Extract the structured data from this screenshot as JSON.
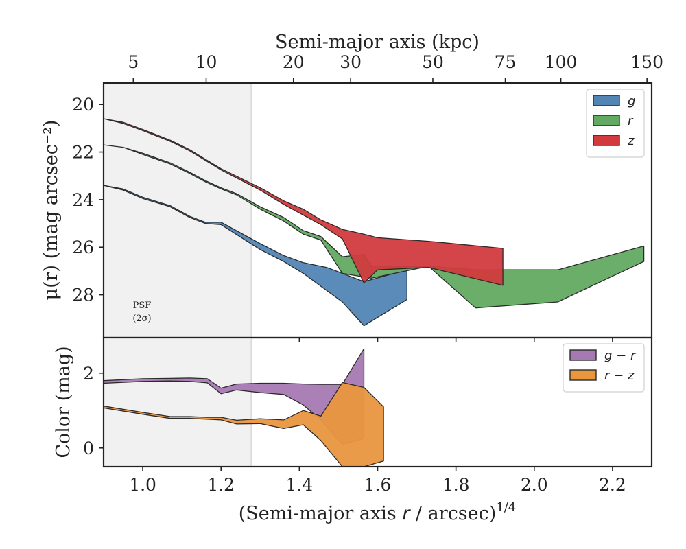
{
  "figure": {
    "top_axis_label": "Semi-major axis (kpc)",
    "bottom_axis_label_main": "(Semi-major axis ",
    "bottom_axis_label_var": "r",
    "bottom_axis_label_unit": " / arcsec)",
    "bottom_axis_label_power": "1/4",
    "psf_label_line1": "PSF",
    "psf_label_line2": "(2σ)"
  },
  "chart_data": [
    {
      "type": "area",
      "panel": "top",
      "ylabel": "μ(r) (mag arcsec⁻²)",
      "xlim": [
        0.9,
        2.3
      ],
      "ylim": [
        29.8,
        19.1
      ],
      "y_inverted": true,
      "x_ticks": [
        1.0,
        1.2,
        1.4,
        1.6,
        1.8,
        2.0,
        2.2
      ],
      "x_tick_labels": [
        "1.0",
        "1.2",
        "1.4",
        "1.6",
        "1.8",
        "2.0",
        "2.2"
      ],
      "y_ticks": [
        20,
        22,
        24,
        26,
        28
      ],
      "y_tick_labels": [
        "20",
        "22",
        "24",
        "26",
        "28"
      ],
      "top_axis_ticks_kpc": [
        5,
        10,
        20,
        30,
        50,
        75,
        100,
        150
      ],
      "top_axis_tick_labels": [
        "5",
        "10",
        "20",
        "30",
        "50",
        "75",
        "100",
        "150"
      ],
      "top_axis_tick_positions_x": [
        0.976,
        1.162,
        1.385,
        1.531,
        1.741,
        1.926,
        2.068,
        2.288
      ],
      "psf_shaded_xmax": 1.277,
      "legend": "top-right",
      "series": [
        {
          "name": "g",
          "color": "#5285b4",
          "upper": [
            [
              0.9,
              23.4
            ],
            [
              0.95,
              23.6
            ],
            [
              1.0,
              23.95
            ],
            [
              1.07,
              24.3
            ],
            [
              1.12,
              24.75
            ],
            [
              1.16,
              25.0
            ],
            [
              1.2,
              25.05
            ],
            [
              1.3,
              26.1
            ],
            [
              1.36,
              26.6
            ],
            [
              1.41,
              27.1
            ],
            [
              1.51,
              28.3
            ],
            [
              1.565,
              29.3
            ],
            [
              1.675,
              28.2
            ],
            [
              1.675,
              26.95
            ]
          ],
          "lower": [
            [
              0.9,
              23.4
            ],
            [
              0.95,
              23.55
            ],
            [
              1.0,
              23.9
            ],
            [
              1.07,
              24.25
            ],
            [
              1.12,
              24.7
            ],
            [
              1.16,
              24.95
            ],
            [
              1.2,
              24.95
            ],
            [
              1.3,
              25.85
            ],
            [
              1.36,
              26.35
            ],
            [
              1.41,
              26.65
            ],
            [
              1.47,
              26.85
            ],
            [
              1.51,
              27.1
            ],
            [
              1.565,
              27.45
            ],
            [
              1.675,
              26.95
            ]
          ]
        },
        {
          "name": "r",
          "color": "#62aa62",
          "upper": [
            [
              0.9,
              21.7
            ],
            [
              0.95,
              21.8
            ],
            [
              1.0,
              22.1
            ],
            [
              1.07,
              22.5
            ],
            [
              1.12,
              22.9
            ],
            [
              1.16,
              23.25
            ],
            [
              1.2,
              23.55
            ],
            [
              1.24,
              23.8
            ],
            [
              1.3,
              24.4
            ],
            [
              1.36,
              24.9
            ],
            [
              1.41,
              25.45
            ],
            [
              1.455,
              25.7
            ],
            [
              1.51,
              27.1
            ],
            [
              1.565,
              27.25
            ],
            [
              1.585,
              27.3
            ],
            [
              1.73,
              26.8
            ],
            [
              1.85,
              28.55
            ],
            [
              2.06,
              28.3
            ],
            [
              2.28,
              26.6
            ]
          ],
          "lower": [
            [
              0.9,
              21.7
            ],
            [
              0.95,
              21.8
            ],
            [
              1.0,
              22.05
            ],
            [
              1.07,
              22.45
            ],
            [
              1.12,
              22.85
            ],
            [
              1.16,
              23.2
            ],
            [
              1.2,
              23.5
            ],
            [
              1.24,
              23.75
            ],
            [
              1.3,
              24.3
            ],
            [
              1.36,
              24.75
            ],
            [
              1.41,
              25.3
            ],
            [
              1.455,
              25.55
            ],
            [
              1.51,
              26.4
            ],
            [
              1.565,
              26.3
            ],
            [
              1.585,
              26.8
            ],
            [
              1.73,
              26.8
            ],
            [
              1.85,
              26.95
            ],
            [
              2.06,
              26.95
            ],
            [
              2.28,
              25.95
            ]
          ]
        },
        {
          "name": "z",
          "color": "#d13b3e",
          "upper": [
            [
              0.9,
              20.6
            ],
            [
              0.95,
              20.8
            ],
            [
              1.0,
              21.1
            ],
            [
              1.07,
              21.55
            ],
            [
              1.12,
              21.95
            ],
            [
              1.16,
              22.35
            ],
            [
              1.2,
              22.75
            ],
            [
              1.3,
              23.6
            ],
            [
              1.36,
              24.2
            ],
            [
              1.41,
              24.65
            ],
            [
              1.455,
              25.05
            ],
            [
              1.51,
              25.65
            ],
            [
              1.565,
              27.5
            ],
            [
              1.6,
              26.95
            ],
            [
              1.73,
              26.85
            ],
            [
              1.92,
              27.6
            ]
          ],
          "lower": [
            [
              0.9,
              20.6
            ],
            [
              0.95,
              20.75
            ],
            [
              1.0,
              21.05
            ],
            [
              1.07,
              21.5
            ],
            [
              1.12,
              21.9
            ],
            [
              1.16,
              22.3
            ],
            [
              1.2,
              22.7
            ],
            [
              1.3,
              23.5
            ],
            [
              1.36,
              24.05
            ],
            [
              1.41,
              24.4
            ],
            [
              1.455,
              24.85
            ],
            [
              1.51,
              25.25
            ],
            [
              1.565,
              25.45
            ],
            [
              1.6,
              25.6
            ],
            [
              1.73,
              25.75
            ],
            [
              1.92,
              26.05
            ]
          ]
        }
      ]
    },
    {
      "type": "area",
      "panel": "bottom",
      "ylabel": "Color (mag)",
      "xlim": [
        0.9,
        2.3
      ],
      "ylim": [
        -0.5,
        2.95
      ],
      "x_ticks": [
        1.0,
        1.2,
        1.4,
        1.6,
        1.8,
        2.0,
        2.2
      ],
      "x_tick_labels": [
        "1.0",
        "1.2",
        "1.4",
        "1.6",
        "1.8",
        "2.0",
        "2.2"
      ],
      "y_ticks": [
        0,
        2
      ],
      "y_tick_labels": [
        "0",
        "2"
      ],
      "psf_shaded_xmax": 1.277,
      "legend": "top-right",
      "series": [
        {
          "name": "g − r",
          "color": "#a779b2",
          "upper": [
            [
              0.9,
              1.8
            ],
            [
              1.0,
              1.85
            ],
            [
              1.07,
              1.86
            ],
            [
              1.12,
              1.87
            ],
            [
              1.165,
              1.85
            ],
            [
              1.2,
              1.6
            ],
            [
              1.24,
              1.71
            ],
            [
              1.3,
              1.73
            ],
            [
              1.36,
              1.73
            ],
            [
              1.41,
              1.71
            ],
            [
              1.455,
              1.7
            ],
            [
              1.51,
              1.7
            ],
            [
              1.565,
              2.65
            ]
          ],
          "lower": [
            [
              0.9,
              1.73
            ],
            [
              1.0,
              1.78
            ],
            [
              1.07,
              1.79
            ],
            [
              1.12,
              1.78
            ],
            [
              1.165,
              1.74
            ],
            [
              1.2,
              1.45
            ],
            [
              1.24,
              1.55
            ],
            [
              1.3,
              1.48
            ],
            [
              1.36,
              1.43
            ],
            [
              1.41,
              1.15
            ],
            [
              1.455,
              0.75
            ],
            [
              1.51,
              0.1
            ],
            [
              1.565,
              0.25
            ]
          ]
        },
        {
          "name": "r − z",
          "color": "#e9963f",
          "upper": [
            [
              0.9,
              1.12
            ],
            [
              1.0,
              0.95
            ],
            [
              1.07,
              0.84
            ],
            [
              1.12,
              0.84
            ],
            [
              1.165,
              0.82
            ],
            [
              1.2,
              0.82
            ],
            [
              1.24,
              0.74
            ],
            [
              1.3,
              0.78
            ],
            [
              1.36,
              0.75
            ],
            [
              1.41,
              1.0
            ],
            [
              1.455,
              0.85
            ],
            [
              1.51,
              1.75
            ],
            [
              1.565,
              1.62
            ],
            [
              1.615,
              1.1
            ]
          ],
          "lower": [
            [
              0.9,
              1.07
            ],
            [
              1.0,
              0.9
            ],
            [
              1.07,
              0.79
            ],
            [
              1.12,
              0.79
            ],
            [
              1.165,
              0.77
            ],
            [
              1.2,
              0.75
            ],
            [
              1.24,
              0.64
            ],
            [
              1.3,
              0.65
            ],
            [
              1.36,
              0.52
            ],
            [
              1.41,
              0.62
            ],
            [
              1.455,
              0.2
            ],
            [
              1.51,
              -0.5
            ],
            [
              1.565,
              -0.5
            ],
            [
              1.615,
              -0.35
            ]
          ]
        }
      ]
    }
  ]
}
